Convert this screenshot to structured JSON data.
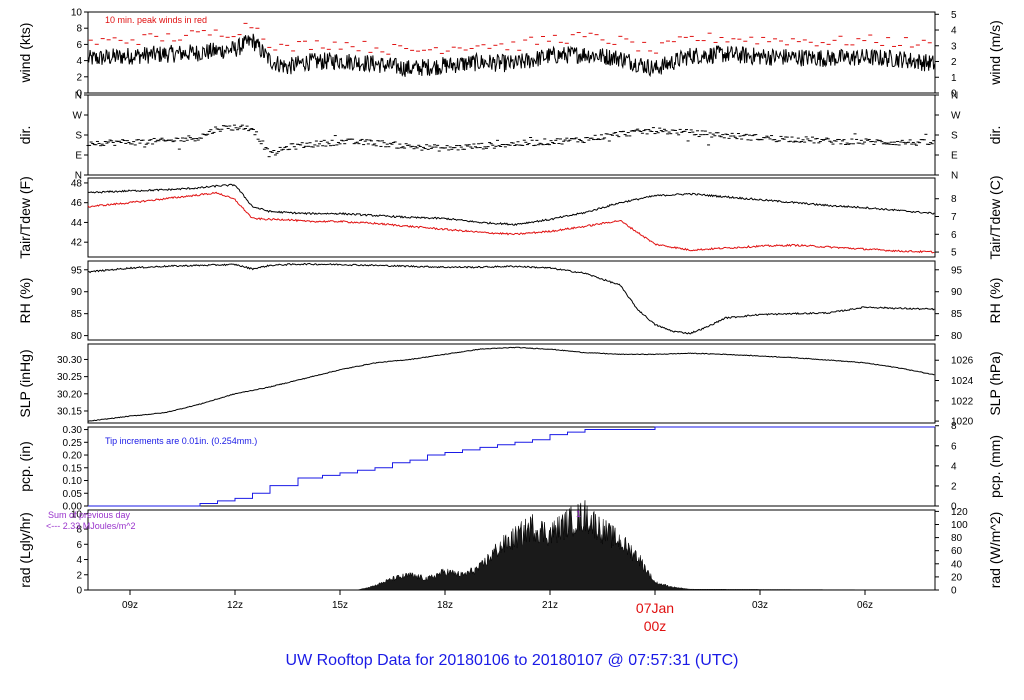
{
  "colors": {
    "red": "#e01010",
    "blue": "#1a1ae6",
    "purple": "#9933cc",
    "black": "#000000"
  },
  "title": "UW Rooftop Data for 20180106  to  20180107 @ 07:57:31  (UTC)",
  "x_axis": {
    "ticks": [
      "09z",
      "12z",
      "15z",
      "18z",
      "21z",
      "07Jan",
      "03z",
      "06z"
    ],
    "date_label_line1": "07Jan",
    "date_label_line2": "00z",
    "range_hours": [
      -16.2,
      8.0
    ]
  },
  "panels": [
    {
      "id": "wind",
      "left_label": "wind (kts)",
      "right_label": "wind (m/s)",
      "left_ticks": [
        "0",
        "2",
        "4",
        "6",
        "8",
        "10"
      ],
      "right_ticks": [
        "0",
        "1",
        "2",
        "3",
        "4",
        "5"
      ],
      "annotation": "10 min. peak winds in red"
    },
    {
      "id": "dir",
      "left_label": "dir.",
      "right_label": "dir.",
      "left_ticks": [
        "N",
        "E",
        "S",
        "W",
        "N"
      ],
      "right_ticks": [
        "N",
        "E",
        "S",
        "W",
        "N"
      ]
    },
    {
      "id": "temp",
      "left_label": "Tair/Tdew (F)",
      "right_label": "Tair/Tdew (C)",
      "left_ticks": [
        "42",
        "44",
        "46",
        "48"
      ],
      "right_ticks": [
        "5",
        "6",
        "7",
        "8"
      ]
    },
    {
      "id": "rh",
      "left_label": "RH (%)",
      "right_label": "RH (%)",
      "left_ticks": [
        "80",
        "85",
        "90",
        "95"
      ],
      "right_ticks": [
        "80",
        "85",
        "90",
        "95"
      ]
    },
    {
      "id": "slp",
      "left_label": "SLP (inHg)",
      "right_label": "SLP (hPa)",
      "left_ticks": [
        "30.15",
        "30.20",
        "30.25",
        "30.30"
      ],
      "right_ticks": [
        "1020",
        "1022",
        "1024",
        "1026"
      ]
    },
    {
      "id": "pcp",
      "left_label": "pcp. (in)",
      "right_label": "pcp. (mm)",
      "left_ticks": [
        "0.00",
        "0.05",
        "0.10",
        "0.15",
        "0.20",
        "0.25",
        "0.30"
      ],
      "right_ticks": [
        "0",
        "2",
        "4",
        "6",
        "8"
      ],
      "annotation": "Tip increments are 0.01in. (0.254mm.)"
    },
    {
      "id": "rad",
      "left_label": "rad (Lgly/hr)",
      "right_label": "rad (W/m^2)",
      "left_ticks": [
        "0",
        "2",
        "4",
        "6",
        "8",
        "10"
      ],
      "right_ticks": [
        "0",
        "20",
        "40",
        "60",
        "80",
        "100",
        "120"
      ],
      "annotation_line1": "Sum of previous day",
      "annotation_line2": "<--- 2.33 MJoules/m^2",
      "peak_marker": "1"
    }
  ],
  "chart_data": [
    {
      "type": "line",
      "panel": "wind",
      "ylabel": "wind (kts)",
      "ylim": [
        0,
        10
      ],
      "x_unit": "hours relative to 07Jan 00z",
      "x": [
        -16.2,
        -15,
        -14,
        -13,
        -12,
        -11.5,
        -11,
        -10.5,
        -10,
        -9,
        -8,
        -7,
        -6,
        -5,
        -4,
        -3,
        -2,
        -1,
        0,
        1,
        2,
        3,
        4,
        5,
        6,
        7,
        8
      ],
      "series": [
        {
          "values": [
            4.2,
            4.6,
            4.8,
            5.0,
            5.4,
            6.5,
            4.0,
            3.2,
            3.8,
            4.0,
            3.6,
            3.0,
            3.4,
            3.8,
            3.6,
            4.6,
            4.8,
            4.3,
            3.0,
            4.6,
            4.8,
            4.5,
            4.4,
            4.3,
            4.4,
            4.2,
            3.6
          ]
        },
        {
          "values": [
            6.2,
            6.6,
            6.8,
            7.2,
            7.6,
            8.6,
            6.2,
            5.4,
            6.0,
            6.1,
            5.6,
            5.2,
            5.6,
            6.0,
            5.8,
            6.7,
            6.9,
            6.4,
            5.2,
            6.7,
            6.8,
            6.6,
            6.5,
            6.3,
            6.5,
            6.3,
            5.8
          ],
          "color": "#e01010"
        }
      ]
    },
    {
      "type": "scatter",
      "panel": "dir",
      "ylabel": "dir.",
      "ylim": [
        0,
        360
      ],
      "x": [
        -16.2,
        -15,
        -14,
        -13,
        -12.5,
        -12,
        -11.5,
        -11,
        -10.5,
        -10,
        -9,
        -8,
        -7,
        -6,
        -5,
        -4,
        -3,
        -2,
        -1,
        0,
        1,
        2,
        3,
        4,
        5,
        6,
        7,
        8
      ],
      "series": [
        {
          "values": [
            145,
            148,
            152,
            170,
            210,
            215,
            212,
            90,
            125,
            135,
            150,
            145,
            128,
            120,
            130,
            140,
            150,
            160,
            185,
            200,
            190,
            178,
            168,
            162,
            152,
            150,
            147,
            145
          ]
        }
      ]
    },
    {
      "type": "line",
      "panel": "temp",
      "ylabel": "Tair/Tdew (F)",
      "ylim": [
        40.5,
        48.5
      ],
      "x": [
        -16.2,
        -15,
        -14,
        -13,
        -12.5,
        -12,
        -11.5,
        -11,
        -10.5,
        -10,
        -9,
        -8,
        -7,
        -6,
        -5,
        -4,
        -3,
        -2,
        -1,
        0,
        1,
        2,
        3,
        4,
        5,
        6,
        7,
        8
      ],
      "series": [
        {
          "name": "Tair",
          "values": [
            47.0,
            47.2,
            47.3,
            47.5,
            47.7,
            47.8,
            45.6,
            45.1,
            45.0,
            44.9,
            44.9,
            44.7,
            44.5,
            44.4,
            44.0,
            43.8,
            44.3,
            45.0,
            46.0,
            46.7,
            46.9,
            46.6,
            46.3,
            46.0,
            45.7,
            45.5,
            45.2,
            44.9
          ],
          "color": "#000000"
        },
        {
          "name": "Tdew",
          "values": [
            45.6,
            46.0,
            46.4,
            46.8,
            47.0,
            46.3,
            44.4,
            44.3,
            44.3,
            44.1,
            44.1,
            43.9,
            43.6,
            43.3,
            43.0,
            42.8,
            43.1,
            43.6,
            44.2,
            41.8,
            41.2,
            41.4,
            41.6,
            41.7,
            41.5,
            41.3,
            41.1,
            41.0
          ],
          "color": "#e01010"
        }
      ]
    },
    {
      "type": "line",
      "panel": "rh",
      "ylabel": "RH (%)",
      "ylim": [
        79,
        97
      ],
      "x": [
        -16.2,
        -15,
        -14,
        -13,
        -12,
        -11.5,
        -11,
        -10.5,
        -10,
        -9,
        -8,
        -7,
        -6,
        -5,
        -4,
        -3,
        -2,
        -1,
        -0.5,
        0,
        0.5,
        1,
        1.5,
        2,
        3,
        4,
        5,
        6,
        7,
        8
      ],
      "series": [
        {
          "values": [
            94.5,
            95.4,
            95.8,
            96.0,
            96.2,
            95.2,
            96.0,
            96.2,
            96.3,
            96.2,
            96.0,
            95.8,
            95.6,
            95.6,
            95.8,
            95.4,
            94.2,
            91.5,
            86.0,
            82.5,
            81.0,
            80.5,
            82.0,
            84.0,
            84.8,
            85.0,
            85.2,
            86.5,
            86.2,
            86.0
          ]
        }
      ]
    },
    {
      "type": "line",
      "panel": "slp",
      "ylabel": "SLP (inHg)",
      "ylim": [
        30.115,
        30.345
      ],
      "x": [
        -16.2,
        -15,
        -14,
        -13,
        -12,
        -11,
        -10,
        -9,
        -8,
        -7,
        -6,
        -5,
        -4,
        -3,
        -2,
        -1,
        0,
        1,
        2,
        3,
        4,
        5,
        6,
        7,
        8
      ],
      "series": [
        {
          "values": [
            30.12,
            30.135,
            30.145,
            30.17,
            30.2,
            30.22,
            30.245,
            30.27,
            30.29,
            30.3,
            30.315,
            30.33,
            30.335,
            30.33,
            30.32,
            30.315,
            30.315,
            30.318,
            30.315,
            30.31,
            30.305,
            30.298,
            30.29,
            30.275,
            30.255
          ]
        }
      ]
    },
    {
      "type": "line",
      "panel": "pcp",
      "ylabel": "pcp. (in)",
      "ylim": [
        0,
        0.31
      ],
      "x": [
        -16.2,
        -13.5,
        -13,
        -12.5,
        -12,
        -11.5,
        -11,
        -10.2,
        -9.5,
        -9,
        -8.5,
        -8,
        -7.5,
        -7,
        -6.5,
        -6,
        -5.5,
        -5,
        -4.5,
        -4,
        -3.5,
        -3,
        -2.5,
        -2,
        -1,
        0,
        1,
        8
      ],
      "series": [
        {
          "values": [
            0.0,
            0.0,
            0.01,
            0.02,
            0.03,
            0.05,
            0.08,
            0.11,
            0.12,
            0.13,
            0.14,
            0.15,
            0.17,
            0.18,
            0.2,
            0.21,
            0.22,
            0.23,
            0.24,
            0.25,
            0.26,
            0.28,
            0.29,
            0.3,
            0.3,
            0.31,
            0.31,
            0.31
          ],
          "color": "#1a1ae6"
        }
      ]
    },
    {
      "type": "area",
      "panel": "rad",
      "ylabel": "rad (Lgly/hr)",
      "ylim": [
        0,
        10.5
      ],
      "x": [
        -16.2,
        -8.5,
        -8,
        -7.5,
        -7,
        -6.5,
        -6,
        -5.5,
        -5,
        -4.5,
        -4,
        -3.5,
        -3,
        -2.5,
        -2,
        -1.5,
        -1,
        -0.5,
        0,
        0.5,
        1,
        8
      ],
      "series": [
        {
          "values": [
            0,
            0,
            0.6,
            1.5,
            2.0,
            1.5,
            2.5,
            2.0,
            3.0,
            5.5,
            7.0,
            8.5,
            7.5,
            9.0,
            10.0,
            8.0,
            6.5,
            4.5,
            1.0,
            0.4,
            0.1,
            0
          ]
        }
      ]
    }
  ]
}
